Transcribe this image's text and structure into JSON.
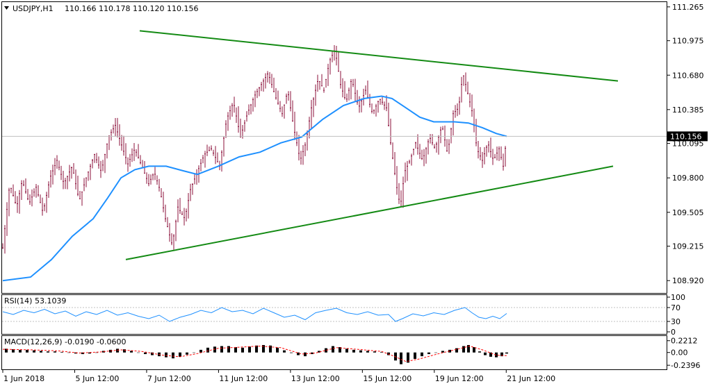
{
  "header": {
    "symbol": "USDJPY,H1",
    "ohlc": "110.166 110.178 110.120 110.156",
    "menu_icon": "triangle-down-icon"
  },
  "colors": {
    "candle": "#8b0f3a",
    "ma": "#1e90ff",
    "trendline": "#138a13",
    "rsi": "#1e90ff",
    "macd_hist": "#000000",
    "macd_signal": "#ff0000",
    "price_box": "#000000"
  },
  "chart_data": {
    "type": "candlestick",
    "y_ticks": [
      "111.265",
      "110.975",
      "110.680",
      "110.385",
      "110.095",
      "109.800",
      "109.505",
      "109.215",
      "108.920"
    ],
    "ylim": [
      108.82,
      111.3
    ],
    "current_price": "110.156",
    "x_labels": [
      "1 Jun 2018",
      "5 Jun 12:00",
      "7 Jun 12:00",
      "11 Jun 12:00",
      "13 Jun 12:00",
      "15 Jun 12:00",
      "19 Jun 12:00",
      "21 Jun 12:00"
    ],
    "x_range": [
      0,
      725
    ],
    "price_path": [
      [
        0,
        109.2
      ],
      [
        10,
        109.75
      ],
      [
        20,
        109.55
      ],
      [
        28,
        109.78
      ],
      [
        38,
        109.58
      ],
      [
        48,
        109.72
      ],
      [
        58,
        109.5
      ],
      [
        68,
        109.8
      ],
      [
        78,
        109.95
      ],
      [
        88,
        109.75
      ],
      [
        100,
        109.9
      ],
      [
        110,
        109.6
      ],
      [
        120,
        109.8
      ],
      [
        132,
        110.0
      ],
      [
        142,
        109.85
      ],
      [
        152,
        110.15
      ],
      [
        162,
        110.25
      ],
      [
        170,
        110.1
      ],
      [
        180,
        109.92
      ],
      [
        190,
        110.05
      ],
      [
        200,
        109.9
      ],
      [
        210,
        109.75
      ],
      [
        218,
        109.85
      ],
      [
        226,
        109.7
      ],
      [
        234,
        109.45
      ],
      [
        244,
        109.22
      ],
      [
        252,
        109.55
      ],
      [
        262,
        109.45
      ],
      [
        270,
        109.7
      ],
      [
        280,
        109.85
      ],
      [
        290,
        110.0
      ],
      [
        300,
        110.05
      ],
      [
        312,
        109.9
      ],
      [
        322,
        110.3
      ],
      [
        332,
        110.45
      ],
      [
        342,
        110.15
      ],
      [
        352,
        110.35
      ],
      [
        362,
        110.5
      ],
      [
        372,
        110.6
      ],
      [
        382,
        110.7
      ],
      [
        392,
        110.5
      ],
      [
        402,
        110.35
      ],
      [
        410,
        110.55
      ],
      [
        418,
        110.25
      ],
      [
        428,
        109.95
      ],
      [
        436,
        110.1
      ],
      [
        444,
        110.4
      ],
      [
        454,
        110.65
      ],
      [
        462,
        110.55
      ],
      [
        470,
        110.8
      ],
      [
        478,
        110.9
      ],
      [
        486,
        110.6
      ],
      [
        494,
        110.45
      ],
      [
        502,
        110.65
      ],
      [
        512,
        110.4
      ],
      [
        522,
        110.55
      ],
      [
        532,
        110.35
      ],
      [
        542,
        110.48
      ],
      [
        552,
        110.4
      ],
      [
        558,
        110.1
      ],
      [
        566,
        109.75
      ],
      [
        572,
        109.55
      ],
      [
        578,
        109.85
      ],
      [
        586,
        109.95
      ],
      [
        594,
        110.1
      ],
      [
        604,
        109.95
      ],
      [
        614,
        110.15
      ],
      [
        622,
        110.05
      ],
      [
        632,
        110.25
      ],
      [
        640,
        110.0
      ],
      [
        648,
        110.35
      ],
      [
        656,
        110.4
      ],
      [
        662,
        110.7
      ],
      [
        668,
        110.55
      ],
      [
        676,
        110.35
      ],
      [
        682,
        110.05
      ],
      [
        690,
        109.95
      ],
      [
        698,
        110.1
      ],
      [
        706,
        109.95
      ],
      [
        714,
        110.05
      ],
      [
        720,
        109.9
      ],
      [
        725,
        110.156
      ]
    ],
    "ma_path": [
      [
        0,
        108.92
      ],
      [
        40,
        108.95
      ],
      [
        70,
        109.1
      ],
      [
        100,
        109.3
      ],
      [
        130,
        109.45
      ],
      [
        150,
        109.62
      ],
      [
        170,
        109.8
      ],
      [
        190,
        109.87
      ],
      [
        210,
        109.9
      ],
      [
        235,
        109.9
      ],
      [
        260,
        109.86
      ],
      [
        280,
        109.83
      ],
      [
        310,
        109.9
      ],
      [
        340,
        109.98
      ],
      [
        370,
        110.02
      ],
      [
        400,
        110.1
      ],
      [
        430,
        110.15
      ],
      [
        460,
        110.3
      ],
      [
        490,
        110.42
      ],
      [
        520,
        110.48
      ],
      [
        545,
        110.5
      ],
      [
        560,
        110.48
      ],
      [
        580,
        110.4
      ],
      [
        600,
        110.32
      ],
      [
        620,
        110.28
      ],
      [
        650,
        110.28
      ],
      [
        670,
        110.27
      ],
      [
        690,
        110.23
      ],
      [
        710,
        110.18
      ],
      [
        725,
        110.156
      ]
    ],
    "trendline_upper": [
      [
        197,
        111.06
      ],
      [
        885,
        110.63
      ]
    ],
    "trendline_lower": [
      [
        177,
        109.1
      ],
      [
        878,
        109.9
      ]
    ],
    "rsi": {
      "label": "RSI(14) 53.1039",
      "ticks": [
        "100",
        "70",
        "30",
        "0"
      ],
      "levels": [
        70,
        30
      ],
      "ylim": [
        0,
        100
      ],
      "path": [
        [
          0,
          58
        ],
        [
          15,
          50
        ],
        [
          30,
          62
        ],
        [
          45,
          55
        ],
        [
          60,
          65
        ],
        [
          75,
          52
        ],
        [
          90,
          60
        ],
        [
          105,
          45
        ],
        [
          120,
          58
        ],
        [
          135,
          50
        ],
        [
          150,
          62
        ],
        [
          165,
          48
        ],
        [
          180,
          55
        ],
        [
          195,
          45
        ],
        [
          210,
          38
        ],
        [
          225,
          48
        ],
        [
          240,
          30
        ],
        [
          255,
          42
        ],
        [
          270,
          50
        ],
        [
          285,
          62
        ],
        [
          300,
          55
        ],
        [
          315,
          70
        ],
        [
          330,
          58
        ],
        [
          345,
          62
        ],
        [
          360,
          52
        ],
        [
          375,
          68
        ],
        [
          390,
          55
        ],
        [
          405,
          42
        ],
        [
          420,
          48
        ],
        [
          435,
          35
        ],
        [
          450,
          55
        ],
        [
          465,
          62
        ],
        [
          480,
          68
        ],
        [
          495,
          55
        ],
        [
          510,
          50
        ],
        [
          525,
          58
        ],
        [
          540,
          48
        ],
        [
          555,
          50
        ],
        [
          565,
          30
        ],
        [
          575,
          38
        ],
        [
          590,
          52
        ],
        [
          605,
          46
        ],
        [
          620,
          55
        ],
        [
          635,
          50
        ],
        [
          650,
          62
        ],
        [
          665,
          70
        ],
        [
          675,
          55
        ],
        [
          685,
          42
        ],
        [
          695,
          38
        ],
        [
          705,
          45
        ],
        [
          715,
          38
        ],
        [
          725,
          53
        ]
      ]
    },
    "macd": {
      "label": "MACD(12,26,9) -0.0190 -0.0600",
      "ticks": [
        "0.2212",
        "0.00",
        "-0.2396"
      ],
      "ylim": [
        -0.29,
        0.27
      ],
      "hist": [
        [
          5,
          0.07
        ],
        [
          15,
          0.06
        ],
        [
          25,
          0.05
        ],
        [
          35,
          0.05
        ],
        [
          45,
          0.04
        ],
        [
          55,
          0.03
        ],
        [
          65,
          0.02
        ],
        [
          75,
          0.02
        ],
        [
          85,
          0.01
        ],
        [
          95,
          0.0
        ],
        [
          105,
          -0.02
        ],
        [
          115,
          -0.03
        ],
        [
          125,
          -0.02
        ],
        [
          135,
          0.0
        ],
        [
          145,
          0.03
        ],
        [
          155,
          0.05
        ],
        [
          165,
          0.07
        ],
        [
          175,
          0.06
        ],
        [
          185,
          0.03
        ],
        [
          195,
          0.0
        ],
        [
          205,
          -0.03
        ],
        [
          215,
          -0.05
        ],
        [
          225,
          -0.07
        ],
        [
          235,
          -0.09
        ],
        [
          245,
          -0.11
        ],
        [
          255,
          -0.08
        ],
        [
          265,
          -0.04
        ],
        [
          275,
          0.0
        ],
        [
          285,
          0.05
        ],
        [
          295,
          0.09
        ],
        [
          305,
          0.11
        ],
        [
          315,
          0.12
        ],
        [
          325,
          0.12
        ],
        [
          335,
          0.1
        ],
        [
          345,
          0.09
        ],
        [
          355,
          0.11
        ],
        [
          365,
          0.13
        ],
        [
          375,
          0.14
        ],
        [
          385,
          0.13
        ],
        [
          395,
          0.09
        ],
        [
          405,
          0.04
        ],
        [
          415,
          -0.01
        ],
        [
          425,
          -0.05
        ],
        [
          435,
          -0.07
        ],
        [
          445,
          -0.03
        ],
        [
          455,
          0.03
        ],
        [
          465,
          0.08
        ],
        [
          475,
          0.12
        ],
        [
          485,
          0.1
        ],
        [
          495,
          0.07
        ],
        [
          505,
          0.05
        ],
        [
          515,
          0.04
        ],
        [
          525,
          0.03
        ],
        [
          535,
          0.02
        ],
        [
          545,
          0.01
        ],
        [
          555,
          -0.05
        ],
        [
          565,
          -0.15
        ],
        [
          573,
          -0.22
        ],
        [
          583,
          -0.19
        ],
        [
          593,
          -0.12
        ],
        [
          603,
          -0.07
        ],
        [
          613,
          -0.03
        ],
        [
          623,
          0.0
        ],
        [
          633,
          0.03
        ],
        [
          643,
          0.05
        ],
        [
          653,
          0.08
        ],
        [
          663,
          0.12
        ],
        [
          670,
          0.14
        ],
        [
          678,
          0.1
        ],
        [
          686,
          0.02
        ],
        [
          694,
          -0.05
        ],
        [
          702,
          -0.08
        ],
        [
          710,
          -0.09
        ],
        [
          718,
          -0.07
        ],
        [
          725,
          -0.02
        ]
      ],
      "signal": [
        [
          0,
          0.06
        ],
        [
          40,
          0.05
        ],
        [
          80,
          0.03
        ],
        [
          110,
          -0.01
        ],
        [
          140,
          0.01
        ],
        [
          170,
          0.05
        ],
        [
          200,
          0.02
        ],
        [
          230,
          -0.05
        ],
        [
          255,
          -0.08
        ],
        [
          280,
          -0.02
        ],
        [
          310,
          0.08
        ],
        [
          340,
          0.1
        ],
        [
          370,
          0.12
        ],
        [
          400,
          0.09
        ],
        [
          430,
          -0.03
        ],
        [
          450,
          -0.01
        ],
        [
          480,
          0.09
        ],
        [
          510,
          0.06
        ],
        [
          545,
          0.02
        ],
        [
          565,
          -0.08
        ],
        [
          580,
          -0.17
        ],
        [
          600,
          -0.12
        ],
        [
          625,
          -0.03
        ],
        [
          650,
          0.05
        ],
        [
          672,
          0.12
        ],
        [
          690,
          0.05
        ],
        [
          710,
          -0.05
        ],
        [
          725,
          -0.06
        ]
      ]
    }
  }
}
